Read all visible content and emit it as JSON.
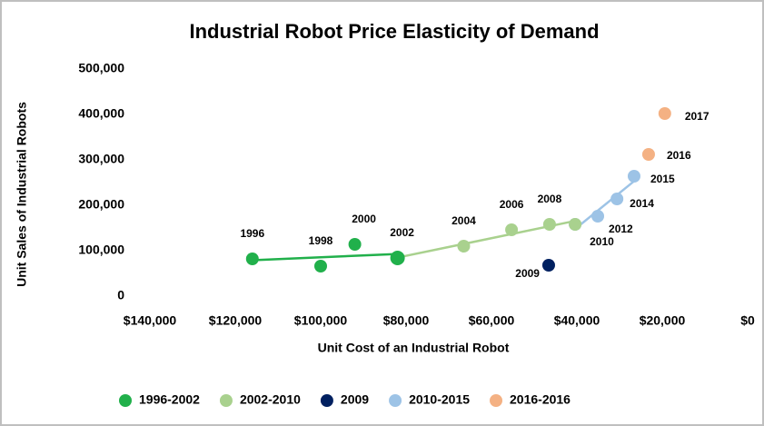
{
  "chart_data": {
    "type": "scatter",
    "title": "Industrial Robot Price Elasticity of Demand",
    "xlabel": "Unit Cost of an Industrial Robot",
    "ylabel": "Unit Sales of Industrial Robots",
    "xlim": [
      140000,
      0
    ],
    "ylim": [
      0,
      500000
    ],
    "xticks": [
      {
        "value": 140000,
        "label": "$140,000"
      },
      {
        "value": 120000,
        "label": "$120,000"
      },
      {
        "value": 100000,
        "label": "$100,000"
      },
      {
        "value": 80000,
        "label": "$80,000"
      },
      {
        "value": 60000,
        "label": "$60,000"
      },
      {
        "value": 40000,
        "label": "$40,000"
      },
      {
        "value": 20000,
        "label": "$20,000"
      },
      {
        "value": 0,
        "label": "$0"
      }
    ],
    "yticks": [
      0,
      {
        "value": 100000,
        "label": "100,000"
      },
      {
        "value": 200000,
        "label": "200,000"
      },
      {
        "value": 300000,
        "label": "300,000"
      },
      {
        "value": 400000,
        "label": "400,000"
      },
      {
        "value": 500000,
        "label": "500,000"
      }
    ],
    "legend": "bottom",
    "series": [
      {
        "name": "1996-2002",
        "color": "#21b04b",
        "trendline": true,
        "x": [
          116000,
          100000,
          92000,
          82000
        ],
        "values": [
          82000,
          66000,
          114000,
          84000
        ],
        "labels": [
          "1996",
          "1998",
          "2000",
          "2002"
        ]
      },
      {
        "name": "2002-2010",
        "color": "#a9d18e",
        "trendline": true,
        "x": [
          82000,
          66500,
          55300,
          46400,
          40400
        ],
        "values": [
          84000,
          110000,
          146000,
          158000,
          158000
        ],
        "labels": [
          null,
          "2004",
          "2006",
          "2008",
          "2010"
        ]
      },
      {
        "name": "2009",
        "color": "#002060",
        "trendline": false,
        "x": [
          46600
        ],
        "values": [
          68000
        ],
        "labels": [
          "2009"
        ]
      },
      {
        "name": "2010-2015",
        "color": "#9dc3e6",
        "trendline": true,
        "x": [
          40400,
          35100,
          30600,
          26600
        ],
        "values": [
          158000,
          176000,
          214000,
          264000
        ],
        "labels": [
          null,
          "2012",
          "2014",
          "2015"
        ]
      },
      {
        "name": "2016-2016",
        "color": "#f4b183",
        "trendline": false,
        "x": [
          23200,
          19400
        ],
        "values": [
          312000,
          402000
        ],
        "labels": [
          "2016",
          "2017"
        ]
      }
    ]
  }
}
